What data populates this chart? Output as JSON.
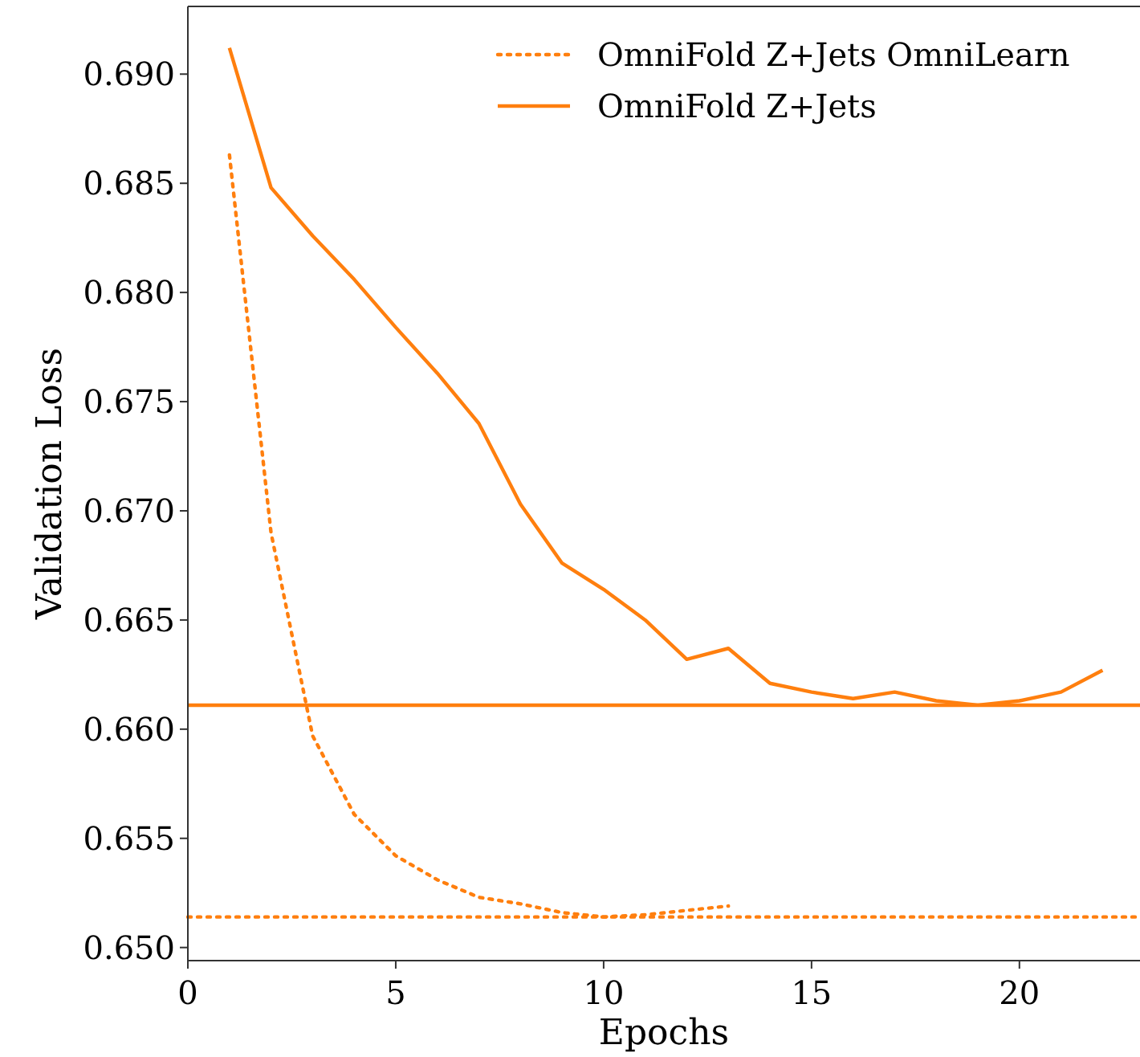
{
  "chart_data": {
    "type": "line",
    "xlabel": "Epochs",
    "ylabel": "Validation Loss",
    "xlim": [
      0,
      22.9
    ],
    "xticks": [
      0,
      5,
      10,
      15,
      20
    ],
    "ylim": [
      0.6494,
      0.6931
    ],
    "yticks": [
      {
        "value": 0.65,
        "label": "0.650"
      },
      0.655,
      {
        "value": 0.66,
        "label": "0.660"
      },
      0.665,
      {
        "value": 0.67,
        "label": "0.670"
      },
      0.675,
      {
        "value": 0.68,
        "label": "0.680"
      },
      0.685,
      {
        "value": 0.69,
        "label": "0.690"
      }
    ],
    "grid": false,
    "legend": "top right",
    "marker": "none",
    "series": [
      {
        "name": "OmniFold Z+Jets OmniLearn",
        "color": "#ff7f0e",
        "line_style": "dotted",
        "x": [
          1,
          2,
          3,
          4,
          5,
          6,
          7,
          8,
          9,
          10,
          11,
          12,
          13
        ],
        "values": [
          0.6863,
          0.669,
          0.6597,
          0.6561,
          0.6542,
          0.6531,
          0.6523,
          0.652,
          0.6516,
          0.6514,
          0.6515,
          0.6517,
          0.6519
        ]
      },
      {
        "name": "OmniFold Z+Jets",
        "color": "#ff7f0e",
        "line_style": "solid",
        "x": [
          1,
          2,
          3,
          4,
          5,
          6,
          7,
          8,
          9,
          10,
          11,
          12,
          13,
          14,
          15,
          16,
          17,
          18,
          19,
          20,
          21,
          22
        ],
        "values": [
          0.6912,
          0.6848,
          0.6826,
          0.6806,
          0.6784,
          0.6763,
          0.674,
          0.6703,
          0.6676,
          0.6664,
          0.665,
          0.6632,
          0.6637,
          0.6621,
          0.6617,
          0.6614,
          0.6617,
          0.6613,
          0.6611,
          0.6613,
          0.6617,
          0.6627
        ]
      }
    ],
    "ref_lines": [
      {
        "axis": "y",
        "value": 0.6611,
        "color": "#ff7f0e",
        "line_style": "solid"
      },
      {
        "axis": "y",
        "value": 0.6514,
        "color": "#ff7f0e",
        "line_style": "dotted"
      }
    ]
  }
}
